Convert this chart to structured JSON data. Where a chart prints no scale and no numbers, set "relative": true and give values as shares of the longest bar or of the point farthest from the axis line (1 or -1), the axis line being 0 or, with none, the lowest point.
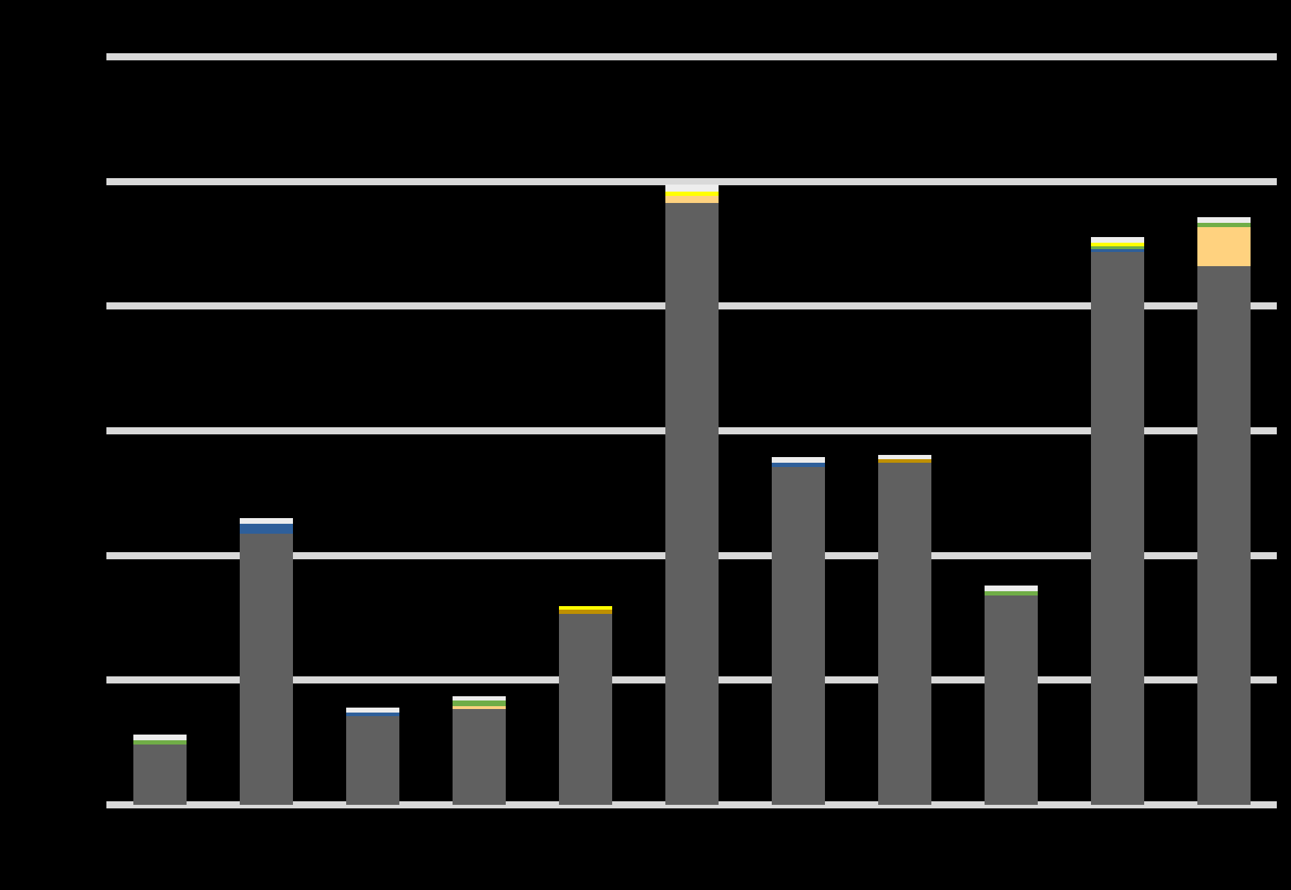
{
  "chart_data": {
    "type": "bar",
    "stacked": true,
    "relative": true,
    "grid": "y",
    "categories": [
      null,
      null,
      null,
      null,
      null,
      null,
      null,
      null,
      null,
      null,
      null
    ],
    "series": [
      {
        "color": "#606060",
        "values": [
          0.097,
          0.437,
          0.143,
          0.154,
          0.308,
          0.971,
          0.545,
          0.552,
          0.337,
          0.891,
          0.869
        ]
      },
      {
        "color": "#ffd27f",
        "values": [
          null,
          null,
          null,
          0.005,
          null,
          0.011,
          null,
          null,
          null,
          null,
          0.063
        ]
      },
      {
        "color": "#2e5f9a",
        "values": [
          null,
          0.016,
          0.005,
          null,
          null,
          null,
          0.007,
          null,
          null,
          0.005,
          null
        ]
      },
      {
        "color": "#70ad47",
        "values": [
          0.007,
          null,
          null,
          0.009,
          null,
          null,
          null,
          null,
          0.007,
          0.005,
          0.007
        ]
      },
      {
        "color": "#bf9000",
        "values": [
          null,
          null,
          null,
          null,
          0.007,
          null,
          null,
          0.005,
          null,
          null,
          null
        ]
      },
      {
        "color": "#ffff00",
        "values": [
          null,
          null,
          null,
          null,
          0.005,
          0.007,
          null,
          null,
          null,
          0.005,
          null
        ]
      },
      {
        "color": "#ededed",
        "values": [
          0.009,
          0.009,
          0.009,
          0.007,
          null,
          0.011,
          0.009,
          0.007,
          0.009,
          0.009,
          0.009
        ]
      }
    ]
  }
}
